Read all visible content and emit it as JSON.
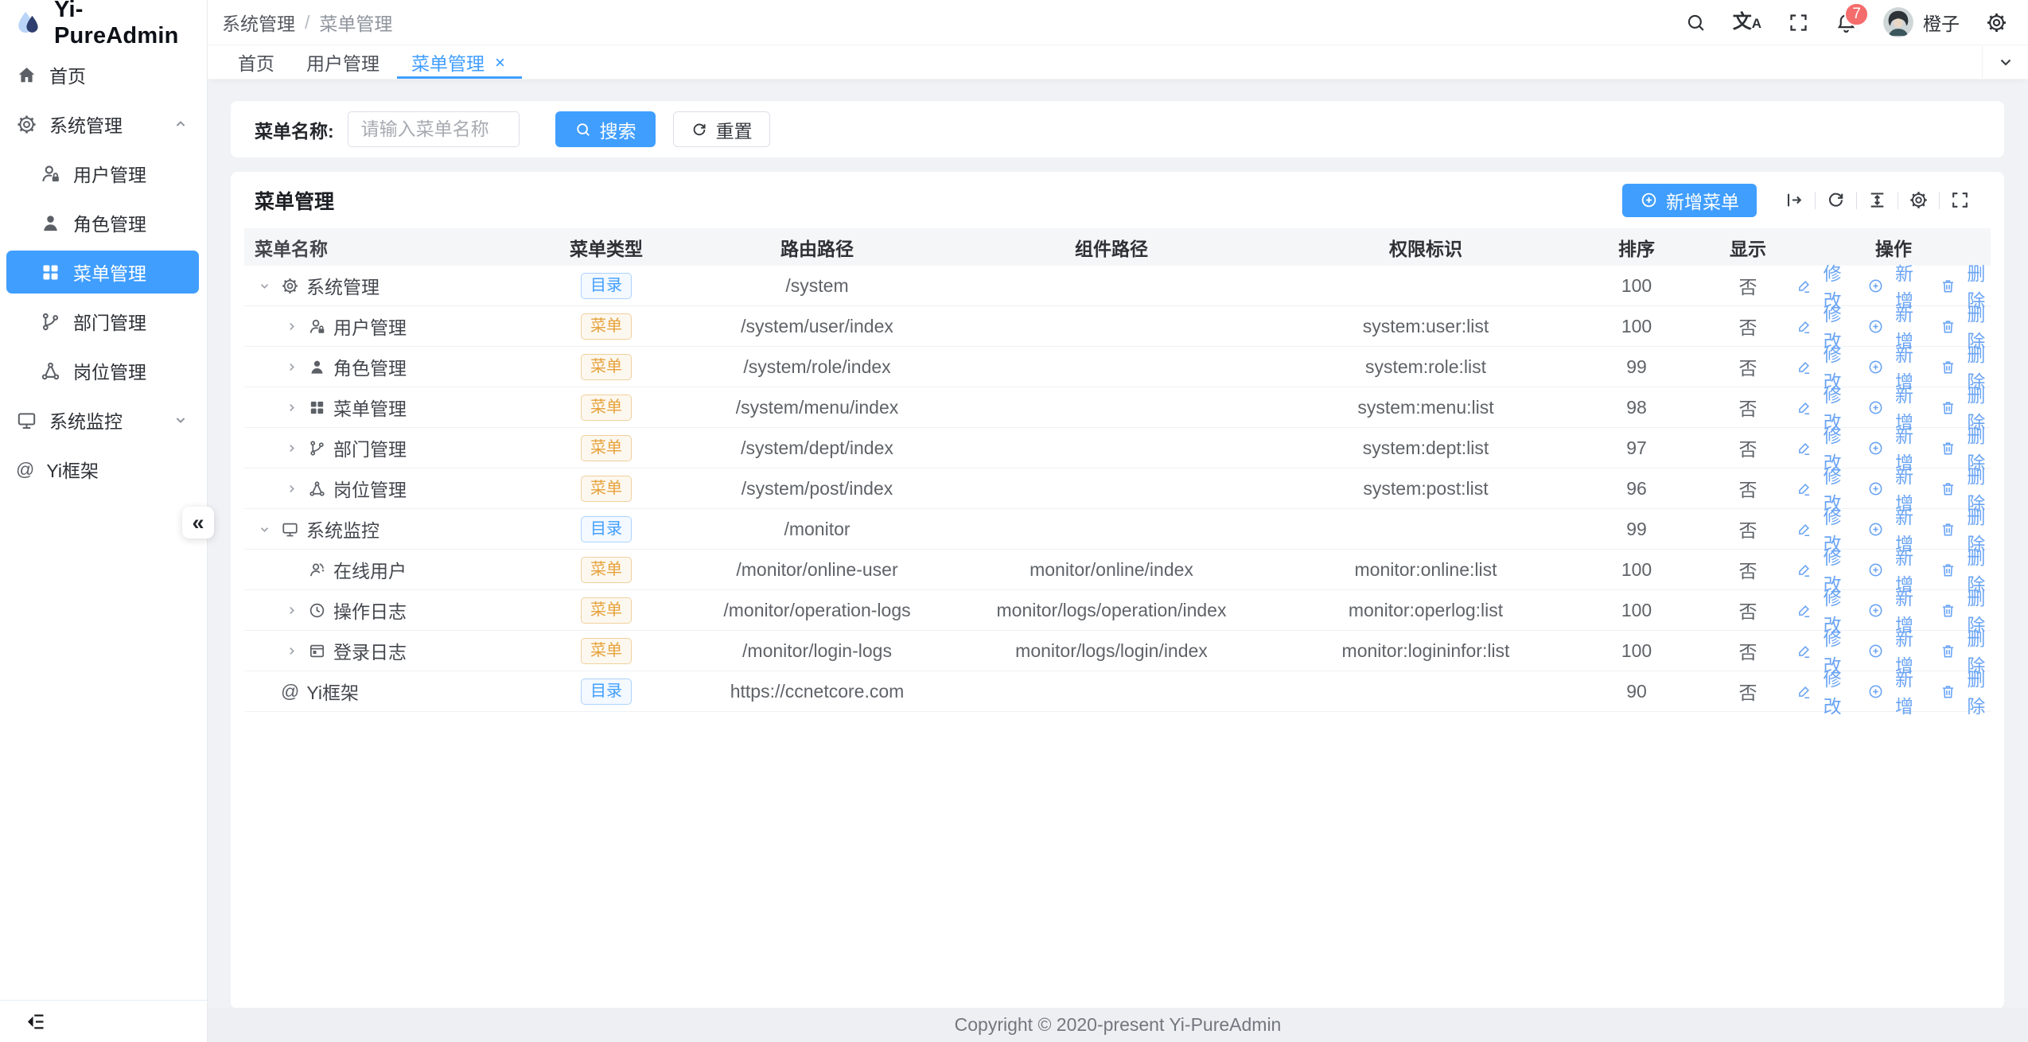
{
  "app": {
    "name": "Yi-PureAdmin"
  },
  "colors": {
    "primary": "#409eff",
    "badge": "#f56c6c",
    "tag_dir_text": "#409eff",
    "tag_menu_text": "#e6a23c",
    "sidebar_active_bg": "#409eff"
  },
  "sidebar": {
    "logo_icon": "logo-drop",
    "title": "Yi-PureAdmin",
    "items": [
      {
        "label": "首页",
        "icon": "home",
        "level": 0,
        "arrow": null,
        "active": false
      },
      {
        "label": "系统管理",
        "icon": "gear",
        "level": 0,
        "arrow": "up",
        "active": false
      },
      {
        "label": "用户管理",
        "icon": "user-lock",
        "level": 1,
        "arrow": null,
        "active": false
      },
      {
        "label": "角色管理",
        "icon": "user",
        "level": 1,
        "arrow": null,
        "active": false
      },
      {
        "label": "菜单管理",
        "icon": "grid",
        "level": 1,
        "arrow": null,
        "active": true
      },
      {
        "label": "部门管理",
        "icon": "dept",
        "level": 1,
        "arrow": null,
        "active": false
      },
      {
        "label": "岗位管理",
        "icon": "post",
        "level": 1,
        "arrow": null,
        "active": false
      },
      {
        "label": "系统监控",
        "icon": "monitor",
        "level": 0,
        "arrow": "down",
        "active": false
      },
      {
        "label": "Yi框架",
        "icon": "at",
        "level": 0,
        "arrow": null,
        "active": false
      }
    ],
    "collapse_glyph": "«"
  },
  "header": {
    "breadcrumb": {
      "first": "系统管理",
      "separator": "/",
      "last": "菜单管理"
    },
    "user_name": "橙子",
    "badge_count": "7",
    "icons": [
      "search",
      "translate",
      "fullscreen",
      "bell",
      "avatar",
      "settings"
    ]
  },
  "tabs": [
    {
      "label": "首页",
      "active": false,
      "closable": false
    },
    {
      "label": "用户管理",
      "active": false,
      "closable": false
    },
    {
      "label": "菜单管理",
      "active": true,
      "closable": true
    }
  ],
  "search": {
    "label": "菜单名称:",
    "placeholder": "请输入菜单名称",
    "search_label": "搜索",
    "reset_label": "重置"
  },
  "card": {
    "title": "菜单管理",
    "add_label": "新增菜单",
    "tool_icons": [
      "expand-bar",
      "refresh",
      "density",
      "gear",
      "fullscreen"
    ]
  },
  "table": {
    "columns": [
      {
        "key": "name",
        "label": "菜单名称"
      },
      {
        "key": "type",
        "label": "菜单类型"
      },
      {
        "key": "route",
        "label": "路由路径"
      },
      {
        "key": "component",
        "label": "组件路径"
      },
      {
        "key": "perm",
        "label": "权限标识"
      },
      {
        "key": "sort",
        "label": "排序"
      },
      {
        "key": "show",
        "label": "显示"
      },
      {
        "key": "actions",
        "label": "操作"
      }
    ],
    "rows": [
      {
        "level": 0,
        "expand": "down",
        "icon": "gear",
        "name": "系统管理",
        "type_kind": "dir",
        "type_label": "目录",
        "route": "/system",
        "component": "",
        "perm": "",
        "sort": "100",
        "show": "否"
      },
      {
        "level": 1,
        "expand": "right",
        "icon": "user-lock",
        "name": "用户管理",
        "type_kind": "menu",
        "type_label": "菜单",
        "route": "/system/user/index",
        "component": "",
        "perm": "system:user:list",
        "sort": "100",
        "show": "否"
      },
      {
        "level": 1,
        "expand": "right",
        "icon": "user",
        "name": "角色管理",
        "type_kind": "menu",
        "type_label": "菜单",
        "route": "/system/role/index",
        "component": "",
        "perm": "system:role:list",
        "sort": "99",
        "show": "否"
      },
      {
        "level": 1,
        "expand": "right",
        "icon": "grid",
        "name": "菜单管理",
        "type_kind": "menu",
        "type_label": "菜单",
        "route": "/system/menu/index",
        "component": "",
        "perm": "system:menu:list",
        "sort": "98",
        "show": "否"
      },
      {
        "level": 1,
        "expand": "right",
        "icon": "dept",
        "name": "部门管理",
        "type_kind": "menu",
        "type_label": "菜单",
        "route": "/system/dept/index",
        "component": "",
        "perm": "system:dept:list",
        "sort": "97",
        "show": "否"
      },
      {
        "level": 1,
        "expand": "right",
        "icon": "post",
        "name": "岗位管理",
        "type_kind": "menu",
        "type_label": "菜单",
        "route": "/system/post/index",
        "component": "",
        "perm": "system:post:list",
        "sort": "96",
        "show": "否"
      },
      {
        "level": 0,
        "expand": "down",
        "icon": "monitor",
        "name": "系统监控",
        "type_kind": "dir",
        "type_label": "目录",
        "route": "/monitor",
        "component": "",
        "perm": "",
        "sort": "99",
        "show": "否"
      },
      {
        "level": 1,
        "expand": null,
        "icon": "headset",
        "name": "在线用户",
        "type_kind": "menu",
        "type_label": "菜单",
        "route": "/monitor/online-user",
        "component": "monitor/online/index",
        "perm": "monitor:online:list",
        "sort": "100",
        "show": "否"
      },
      {
        "level": 1,
        "expand": "right",
        "icon": "clock",
        "name": "操作日志",
        "type_kind": "menu",
        "type_label": "菜单",
        "route": "/monitor/operation-logs",
        "component": "monitor/logs/operation/index",
        "perm": "monitor:operlog:list",
        "sort": "100",
        "show": "否"
      },
      {
        "level": 1,
        "expand": "right",
        "icon": "window",
        "name": "登录日志",
        "type_kind": "menu",
        "type_label": "菜单",
        "route": "/monitor/login-logs",
        "component": "monitor/logs/login/index",
        "perm": "monitor:logininfor:list",
        "sort": "100",
        "show": "否"
      },
      {
        "level": 0,
        "expand": null,
        "icon": "at",
        "name": "Yi框架",
        "type_kind": "dir",
        "type_label": "目录",
        "route": "https://ccnetcore.com",
        "component": "",
        "perm": "",
        "sort": "90",
        "show": "否"
      }
    ],
    "actions": [
      {
        "key": "edit",
        "label": "修改",
        "icon": "edit"
      },
      {
        "key": "add",
        "label": "新增",
        "icon": "plus-circle"
      },
      {
        "key": "delete",
        "label": "删除",
        "icon": "trash"
      }
    ]
  },
  "footer": {
    "copyright": "Copyright © 2020-present Yi-PureAdmin"
  }
}
